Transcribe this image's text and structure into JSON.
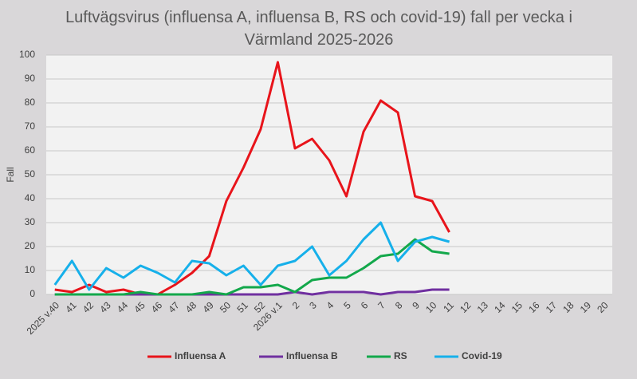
{
  "chart_data": {
    "type": "line",
    "title": "Luftvägsvirus (influensa A, influensa B, RS och covid-19) fall per vecka i Värmland 2025-2026",
    "y_label": "Fall",
    "categories": [
      "2025 v.40",
      "41",
      "42",
      "43",
      "44",
      "45",
      "46",
      "47",
      "48",
      "49",
      "50",
      "51",
      "52",
      "2026 v.1",
      "2",
      "3",
      "4",
      "5",
      "6",
      "7",
      "8",
      "9",
      "10",
      "11",
      "12",
      "13",
      "14",
      "15",
      "16",
      "17",
      "18",
      "19",
      "20"
    ],
    "series": [
      {
        "name": "Influensa A",
        "color": "#e8141b",
        "values": [
          2,
          1,
          4,
          1,
          2,
          0,
          0,
          4,
          9,
          16,
          39,
          53,
          69,
          97,
          61,
          65,
          56,
          41,
          68,
          81,
          76,
          41,
          39,
          26,
          null,
          null,
          null,
          null,
          null,
          null,
          null,
          null,
          null
        ]
      },
      {
        "name": "Influensa B",
        "color": "#7030a0",
        "values": [
          0,
          0,
          0,
          0,
          0,
          0,
          0,
          0,
          0,
          0,
          0,
          0,
          0,
          0,
          1,
          0,
          1,
          1,
          1,
          0,
          1,
          1,
          2,
          2,
          null,
          null,
          null,
          null,
          null,
          null,
          null,
          null,
          null
        ]
      },
      {
        "name": "RS",
        "color": "#13a84b",
        "values": [
          0,
          0,
          0,
          0,
          0,
          1,
          0,
          0,
          0,
          1,
          0,
          3,
          3,
          4,
          1,
          6,
          7,
          7,
          11,
          16,
          17,
          23,
          18,
          17,
          null,
          null,
          null,
          null,
          null,
          null,
          null,
          null,
          null
        ]
      },
      {
        "name": "Covid-19",
        "color": "#16b0ea",
        "values": [
          4,
          14,
          2,
          11,
          7,
          12,
          9,
          5,
          14,
          13,
          8,
          12,
          4,
          12,
          14,
          20,
          8,
          14,
          23,
          30,
          14,
          22,
          24,
          22,
          null,
          null,
          null,
          null,
          null,
          null,
          null,
          null,
          null
        ]
      }
    ],
    "ylim": [
      0,
      100
    ],
    "yticks": [
      0,
      10,
      20,
      30,
      40,
      50,
      60,
      70,
      80,
      90,
      100
    ],
    "grid": true,
    "legend": "bottom"
  }
}
